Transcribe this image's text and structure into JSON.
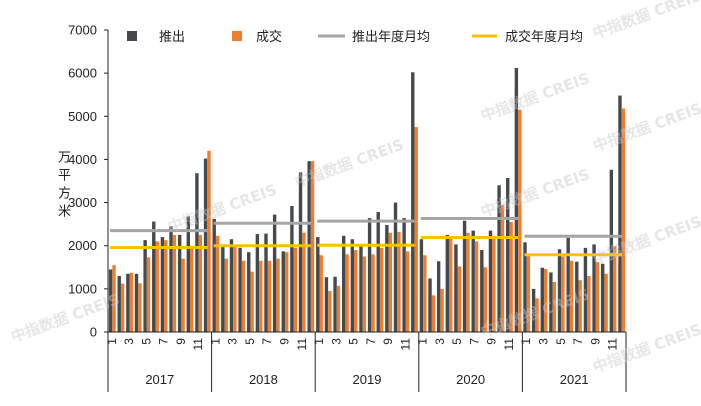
{
  "watermark": "中指数据 CREIS",
  "chart_data": {
    "type": "bar",
    "title": "",
    "xlabel": "",
    "ylabel": "万平方米",
    "ylim": [
      0,
      7000
    ],
    "yticks": [
      0,
      1000,
      2000,
      3000,
      4000,
      5000,
      6000,
      7000
    ],
    "grid": false,
    "legend_position": "top",
    "years": [
      "2017",
      "2018",
      "2019",
      "2020",
      "2021"
    ],
    "month_tick_labels": [
      "1",
      "3",
      "5",
      "7",
      "9",
      "11"
    ],
    "series": [
      {
        "name": "推出",
        "color": "#44494d",
        "values": [
          1450,
          1300,
          1350,
          1350,
          2130,
          2560,
          2200,
          2450,
          2250,
          2680,
          3680,
          4020,
          2620,
          2000,
          2150,
          1950,
          1850,
          2270,
          2280,
          2720,
          1870,
          2920,
          3700,
          3960,
          2200,
          1270,
          1280,
          2230,
          2150,
          2000,
          2640,
          2780,
          2480,
          3000,
          2640,
          6020,
          2150,
          1240,
          1640,
          2250,
          2030,
          2580,
          2350,
          1900,
          2350,
          3400,
          3570,
          6120,
          2080,
          1000,
          1490,
          1380,
          1920,
          2180,
          1630,
          1950,
          2030,
          1580,
          3760,
          5480
        ]
      },
      {
        "name": "成交",
        "color": "#ed7d31",
        "values": [
          1550,
          1120,
          1370,
          1130,
          1730,
          2100,
          2130,
          2250,
          1700,
          2000,
          2250,
          4200,
          2230,
          1700,
          2000,
          1650,
          1400,
          1650,
          1650,
          1700,
          1850,
          1950,
          2300,
          3960,
          1780,
          950,
          1070,
          1800,
          1900,
          1750,
          1800,
          1950,
          2300,
          2320,
          1870,
          4750,
          1780,
          850,
          1000,
          2200,
          1520,
          2300,
          2100,
          1500,
          2230,
          2950,
          2550,
          5150,
          1760,
          780,
          1460,
          1160,
          1750,
          1650,
          1200,
          1300,
          1620,
          1350,
          1990,
          5180
        ]
      }
    ],
    "annual_monthly_average": [
      {
        "name": "推出年度月均",
        "color": "#a5a5a5",
        "values": [
          2350,
          2520,
          2570,
          2630,
          2220
        ]
      },
      {
        "name": "成交年度月均",
        "color": "#ffc000",
        "values": [
          1960,
          2000,
          2010,
          2190,
          1790
        ]
      }
    ]
  }
}
